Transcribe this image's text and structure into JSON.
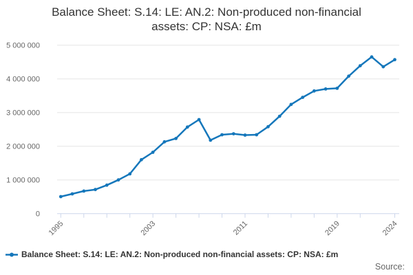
{
  "header": {
    "title_line1": "Balance Sheet: S.14: LE: AN.2: Non-produced non-financial",
    "title_line2": "assets: CP: NSA: £m"
  },
  "legend": {
    "label": "Balance Sheet: S.14: LE: AN.2: Non-produced non-financial assets: CP: NSA: £m"
  },
  "footer": {
    "source_label": "Source:"
  },
  "chart_data": {
    "type": "line",
    "title": "Balance Sheet: S.14: LE: AN.2: Non-produced non-financial assets: CP: NSA: £m",
    "series_name": "Balance Sheet: S.14: LE: AN.2: Non-produced non-financial assets: CP: NSA: £m",
    "x": [
      1995,
      1996,
      1997,
      1998,
      1999,
      2000,
      2001,
      2002,
      2003,
      2004,
      2005,
      2006,
      2007,
      2008,
      2009,
      2010,
      2011,
      2012,
      2013,
      2014,
      2015,
      2016,
      2017,
      2018,
      2019,
      2020,
      2021,
      2022,
      2023,
      2024
    ],
    "values": [
      505000,
      585000,
      670000,
      715000,
      845000,
      1000000,
      1180000,
      1600000,
      1820000,
      2130000,
      2230000,
      2570000,
      2790000,
      2180000,
      2340000,
      2370000,
      2330000,
      2340000,
      2580000,
      2890000,
      3240000,
      3450000,
      3640000,
      3700000,
      3720000,
      4080000,
      4390000,
      4650000,
      4360000,
      4570000
    ],
    "ylim": [
      0,
      5000000
    ],
    "y_ticks": [
      {
        "value": 0,
        "label": "0"
      },
      {
        "value": 1000000,
        "label": "1 000 000"
      },
      {
        "value": 2000000,
        "label": "2 000 000"
      },
      {
        "value": 3000000,
        "label": "3 000 000"
      },
      {
        "value": 4000000,
        "label": "4 000 000"
      },
      {
        "value": 5000000,
        "label": "5 000 000"
      }
    ],
    "x_tick_years": [
      1995,
      1997,
      1999,
      2001,
      2003,
      2005,
      2007,
      2009,
      2011,
      2013,
      2015,
      2017,
      2019,
      2021,
      2024
    ],
    "x_label_years": [
      1995,
      2003,
      2011,
      2019,
      2024
    ],
    "grid": true,
    "legend_position": "bottom-left",
    "line_color": "#1577bb",
    "grid_color": "#e6e6e6",
    "axis_color": "#ccd6eb",
    "tick_label_color": "#666666",
    "title_color": "#333333"
  }
}
